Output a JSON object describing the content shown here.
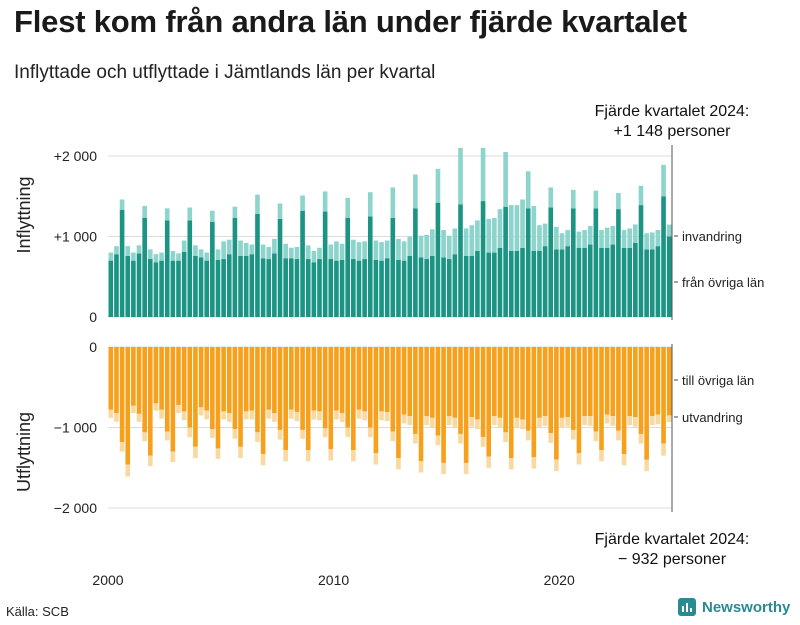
{
  "title": "Flest kom från andra län under fjärde kvartalet",
  "subtitle": "Inflyttade och utflyttade i Jämtlands län per kvartal",
  "source": "Källa: SCB",
  "brand": "Newsworthy",
  "colors": {
    "inflow_main": "#1b9484",
    "inflow_immigration": "#8dd4cc",
    "outflow_main": "#f6a01c",
    "outflow_emigration": "#f9d9a0",
    "grid": "#dddddd"
  },
  "annotations": {
    "top_line1": "Fjärde kvartalet 2024:",
    "top_line2": "+1 148 personer",
    "bottom_line1": "Fjärde kvartalet 2024:",
    "bottom_line2": "−  932 personer"
  },
  "chart_data": {
    "type": "bar",
    "stacked": true,
    "diverging": true,
    "title": "Flest kom från andra län under fjärde kvartalet",
    "xlabel": "",
    "ylabel_top": "Inflyttning",
    "ylabel_bottom": "Utflyttning",
    "ylim": [
      -2000,
      2000
    ],
    "x_ticks": [
      "2000",
      "2010",
      "2020"
    ],
    "y_ticks_top": [
      "+2 000",
      "+1 000",
      "0"
    ],
    "y_ticks_bottom": [
      "0",
      "−1 000",
      "−2 000"
    ],
    "legend": {
      "inflow_main": "från övriga län",
      "inflow_immigration": "invandring",
      "outflow_main": "till övriga län",
      "outflow_emigration": "utvandring"
    },
    "categories": [
      "2000 Q1",
      "2000 Q2",
      "2000 Q3",
      "2000 Q4",
      "2001 Q1",
      "2001 Q2",
      "2001 Q3",
      "2001 Q4",
      "2002 Q1",
      "2002 Q2",
      "2002 Q3",
      "2002 Q4",
      "2003 Q1",
      "2003 Q2",
      "2003 Q3",
      "2003 Q4",
      "2004 Q1",
      "2004 Q2",
      "2004 Q3",
      "2004 Q4",
      "2005 Q1",
      "2005 Q2",
      "2005 Q3",
      "2005 Q4",
      "2006 Q1",
      "2006 Q2",
      "2006 Q3",
      "2006 Q4",
      "2007 Q1",
      "2007 Q2",
      "2007 Q3",
      "2007 Q4",
      "2008 Q1",
      "2008 Q2",
      "2008 Q3",
      "2008 Q4",
      "2009 Q1",
      "2009 Q2",
      "2009 Q3",
      "2009 Q4",
      "2010 Q1",
      "2010 Q2",
      "2010 Q3",
      "2010 Q4",
      "2011 Q1",
      "2011 Q2",
      "2011 Q3",
      "2011 Q4",
      "2012 Q1",
      "2012 Q2",
      "2012 Q3",
      "2012 Q4",
      "2013 Q1",
      "2013 Q2",
      "2013 Q3",
      "2013 Q4",
      "2014 Q1",
      "2014 Q2",
      "2014 Q3",
      "2014 Q4",
      "2015 Q1",
      "2015 Q2",
      "2015 Q3",
      "2015 Q4",
      "2016 Q1",
      "2016 Q2",
      "2016 Q3",
      "2016 Q4",
      "2017 Q1",
      "2017 Q2",
      "2017 Q3",
      "2017 Q4",
      "2018 Q1",
      "2018 Q2",
      "2018 Q3",
      "2018 Q4",
      "2019 Q1",
      "2019 Q2",
      "2019 Q3",
      "2019 Q4",
      "2020 Q1",
      "2020 Q2",
      "2020 Q3",
      "2020 Q4",
      "2021 Q1",
      "2021 Q2",
      "2021 Q3",
      "2021 Q4",
      "2022 Q1",
      "2022 Q2",
      "2022 Q3",
      "2022 Q4",
      "2023 Q1",
      "2023 Q2",
      "2023 Q3",
      "2023 Q4",
      "2024 Q1",
      "2024 Q2",
      "2024 Q3",
      "2024 Q4"
    ],
    "series": [
      {
        "name": "från övriga län",
        "values": [
          700,
          780,
          1330,
          760,
          700,
          790,
          1230,
          720,
          680,
          700,
          1200,
          700,
          700,
          810,
          1200,
          760,
          740,
          700,
          1180,
          710,
          720,
          780,
          1230,
          760,
          760,
          780,
          1280,
          730,
          720,
          790,
          1220,
          730,
          730,
          720,
          1320,
          720,
          680,
          720,
          1310,
          720,
          700,
          710,
          1230,
          720,
          700,
          720,
          1250,
          710,
          700,
          730,
          1230,
          710,
          700,
          760,
          1350,
          740,
          720,
          760,
          1420,
          740,
          720,
          780,
          1400,
          760,
          760,
          820,
          1440,
          800,
          800,
          860,
          1370,
          820,
          820,
          860,
          1350,
          820,
          820,
          880,
          1360,
          840,
          840,
          880,
          1350,
          860,
          860,
          900,
          1350,
          860,
          860,
          900,
          1340,
          860,
          860,
          920,
          1390,
          840,
          840,
          880,
          1500,
          1000
        ]
      },
      {
        "name": "invandring",
        "values": [
          100,
          100,
          130,
          120,
          100,
          100,
          150,
          120,
          100,
          100,
          150,
          120,
          90,
          140,
          160,
          130,
          100,
          100,
          140,
          130,
          220,
          180,
          140,
          190,
          160,
          120,
          240,
          170,
          150,
          180,
          190,
          180,
          130,
          150,
          190,
          170,
          140,
          140,
          250,
          180,
          240,
          200,
          250,
          240,
          230,
          220,
          300,
          240,
          230,
          220,
          380,
          260,
          240,
          240,
          420,
          270,
          300,
          330,
          420,
          340,
          290,
          320,
          700,
          340,
          380,
          380,
          660,
          420,
          430,
          480,
          680,
          570,
          570,
          600,
          460,
          560,
          320,
          280,
          250,
          280,
          200,
          200,
          230,
          200,
          220,
          230,
          220,
          220,
          250,
          230,
          200,
          220,
          240,
          230,
          240,
          200,
          210,
          200,
          390,
          148
        ]
      },
      {
        "name": "till övriga län",
        "values": [
          -780,
          -820,
          -1180,
          -1460,
          -730,
          -830,
          -1060,
          -1350,
          -700,
          -780,
          -1050,
          -1300,
          -720,
          -800,
          -1000,
          -1240,
          -750,
          -790,
          -1020,
          -1260,
          -800,
          -820,
          -1020,
          -1240,
          -800,
          -790,
          -1060,
          -1330,
          -780,
          -820,
          -1030,
          -1280,
          -780,
          -810,
          -1030,
          -1280,
          -790,
          -800,
          -1010,
          -1270,
          -790,
          -820,
          -1000,
          -1280,
          -780,
          -800,
          -1000,
          -1320,
          -800,
          -810,
          -1050,
          -1380,
          -840,
          -860,
          -1080,
          -1420,
          -860,
          -880,
          -1100,
          -1440,
          -860,
          -880,
          -1080,
          -1440,
          -870,
          -900,
          -1120,
          -1360,
          -860,
          -880,
          -1060,
          -1380,
          -880,
          -900,
          -1040,
          -1370,
          -880,
          -860,
          -1070,
          -1400,
          -880,
          -870,
          -1030,
          -1320,
          -860,
          -860,
          -1050,
          -1280,
          -840,
          -860,
          -1040,
          -1330,
          -860,
          -870,
          -1080,
          -1400,
          -860,
          -840,
          -1200,
          -850
        ]
      },
      {
        "name": "utvandring",
        "values": [
          -100,
          -110,
          -120,
          -150,
          -90,
          -100,
          -110,
          -130,
          -90,
          -110,
          -110,
          -130,
          -100,
          -110,
          -120,
          -140,
          -100,
          -110,
          -110,
          -130,
          -100,
          -110,
          -120,
          -140,
          -100,
          -110,
          -120,
          -140,
          -110,
          -110,
          -120,
          -140,
          -110,
          -110,
          -110,
          -140,
          -110,
          -110,
          -110,
          -140,
          -110,
          -110,
          -120,
          -140,
          -110,
          -110,
          -120,
          -140,
          -110,
          -110,
          -120,
          -140,
          -110,
          -110,
          -120,
          -140,
          -110,
          -120,
          -120,
          -140,
          -110,
          -120,
          -120,
          -140,
          -120,
          -120,
          -120,
          -140,
          -110,
          -120,
          -120,
          -140,
          -120,
          -120,
          -120,
          -140,
          -120,
          -120,
          -120,
          -140,
          -120,
          -120,
          -120,
          -140,
          -110,
          -120,
          -120,
          -140,
          -110,
          -120,
          -120,
          -140,
          -110,
          -120,
          -120,
          -140,
          -110,
          -120,
          -150,
          -82
        ]
      }
    ]
  }
}
